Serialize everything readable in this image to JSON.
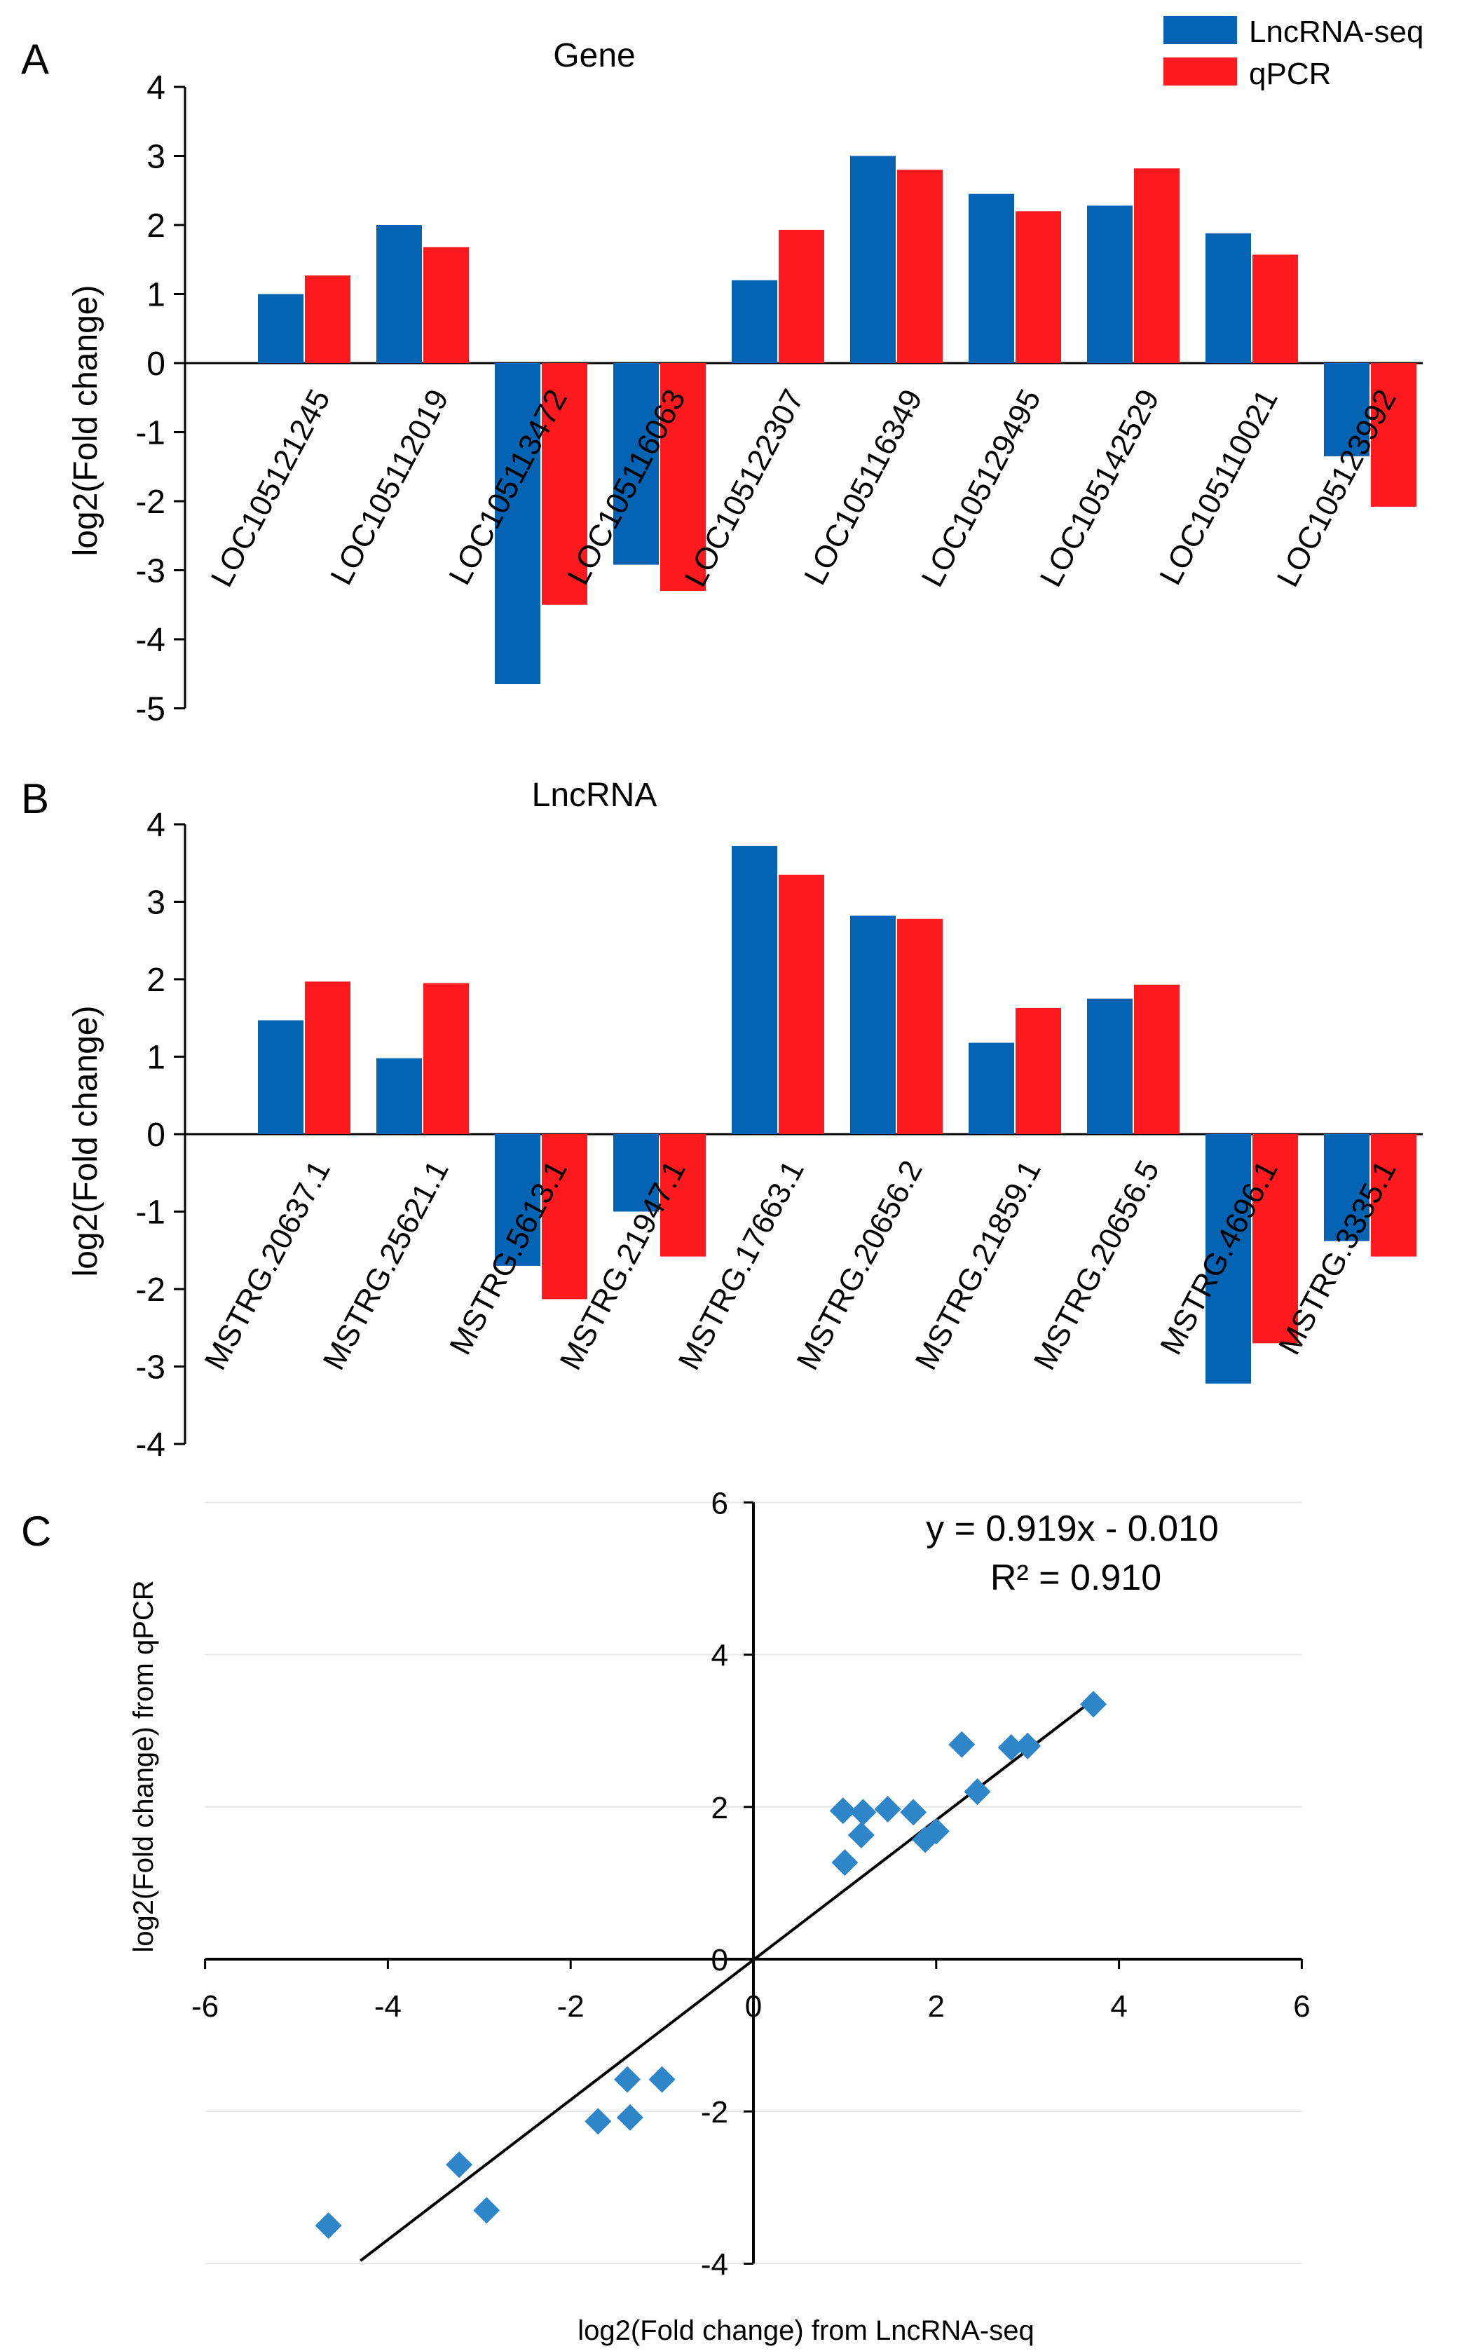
{
  "colors": {
    "lncrna_seq": "#0563b3",
    "qpcr": "#fd1a1f",
    "scatter_point": "#2e86c8",
    "gridline": "#e6e6e6",
    "axis": "#000000"
  },
  "legend": {
    "items": [
      {
        "name": "LncRNA-seq",
        "color": "#0563b3"
      },
      {
        "name": "qPCR",
        "color": "#fd1a1f"
      }
    ]
  },
  "panels": {
    "A": {
      "label": "A"
    },
    "B": {
      "label": "B"
    },
    "C": {
      "label": "C"
    }
  },
  "chart_data": [
    {
      "id": "A",
      "type": "bar",
      "title": "Gene",
      "ylabel": "log2(Fold change)",
      "ylim": [
        -5,
        4
      ],
      "yticks": [
        "4",
        "3",
        "2",
        "1",
        "0",
        "-1",
        "-2",
        "-3",
        "-4",
        "-5"
      ],
      "categories": [
        "LOC105121245",
        "LOC105112019",
        "LOC105113472",
        "LOC105116063",
        "LOC105122307",
        "LOC105116349",
        "LOC105129495",
        "LOC105142529",
        "LOC105110021",
        "LOC105123992"
      ],
      "series": [
        {
          "name": "LncRNA-seq",
          "values": [
            1.0,
            2.0,
            -4.65,
            -2.92,
            1.2,
            3.0,
            2.45,
            2.28,
            1.88,
            -1.35
          ]
        },
        {
          "name": "qPCR",
          "values": [
            1.27,
            1.68,
            -3.5,
            -3.3,
            1.93,
            2.8,
            2.2,
            2.82,
            1.57,
            -2.08
          ]
        }
      ]
    },
    {
      "id": "B",
      "type": "bar",
      "title": "LncRNA",
      "ylabel": "log2(Fold change)",
      "ylim": [
        -4,
        4
      ],
      "yticks": [
        "4",
        "3",
        "2",
        "1",
        "0",
        "-1",
        "-2",
        "-3",
        "-4"
      ],
      "categories": [
        "MSTRG.20637.1",
        "MSTRG.25621.1",
        "MSTRG.5613.1",
        "MSTRG.21947.1",
        "MSTRG.17663.1",
        "MSTRG.20656.2",
        "MSTRG.21859.1",
        "MSTRG.20656.5",
        "MSTRG.4696.1",
        "MSTRG.3335.1"
      ],
      "series": [
        {
          "name": "LncRNA-seq",
          "values": [
            1.47,
            0.98,
            -1.7,
            -1.0,
            3.72,
            2.82,
            1.18,
            1.75,
            -3.22,
            -1.38
          ]
        },
        {
          "name": "qPCR",
          "values": [
            1.97,
            1.95,
            -2.13,
            -1.58,
            3.35,
            2.78,
            1.63,
            1.93,
            -2.7,
            -1.58
          ]
        }
      ]
    },
    {
      "id": "C",
      "type": "scatter",
      "xlabel": "log2(Fold change) from LncRNA-seq",
      "ylabel": "log2(Fold change) from qPCR",
      "xlim": [
        -6,
        6
      ],
      "ylim": [
        -4,
        6
      ],
      "xticks": [
        "-6",
        "-4",
        "-2",
        "0",
        "2",
        "4",
        "6"
      ],
      "yticks": [
        "6",
        "4",
        "2",
        "0",
        "-2",
        "-4"
      ],
      "equation": "y = 0.919x - 0.010",
      "r_squared": "R² = 0.910",
      "fit": {
        "slope": 0.919,
        "intercept": -0.01,
        "x_range": [
          -4.3,
          3.7
        ]
      },
      "points": [
        {
          "x": 1.0,
          "y": 1.27
        },
        {
          "x": 2.0,
          "y": 1.68
        },
        {
          "x": -4.65,
          "y": -3.5
        },
        {
          "x": -2.92,
          "y": -3.3
        },
        {
          "x": 1.2,
          "y": 1.93
        },
        {
          "x": 3.0,
          "y": 2.8
        },
        {
          "x": 2.45,
          "y": 2.2
        },
        {
          "x": 2.28,
          "y": 2.82
        },
        {
          "x": 1.88,
          "y": 1.57
        },
        {
          "x": -1.35,
          "y": -2.08
        },
        {
          "x": 1.47,
          "y": 1.97
        },
        {
          "x": 0.98,
          "y": 1.95
        },
        {
          "x": -1.7,
          "y": -2.13
        },
        {
          "x": -1.0,
          "y": -1.58
        },
        {
          "x": 3.72,
          "y": 3.35
        },
        {
          "x": 2.82,
          "y": 2.78
        },
        {
          "x": 1.18,
          "y": 1.63
        },
        {
          "x": 1.75,
          "y": 1.93
        },
        {
          "x": -3.22,
          "y": -2.7
        },
        {
          "x": -1.38,
          "y": -1.58
        }
      ]
    }
  ]
}
